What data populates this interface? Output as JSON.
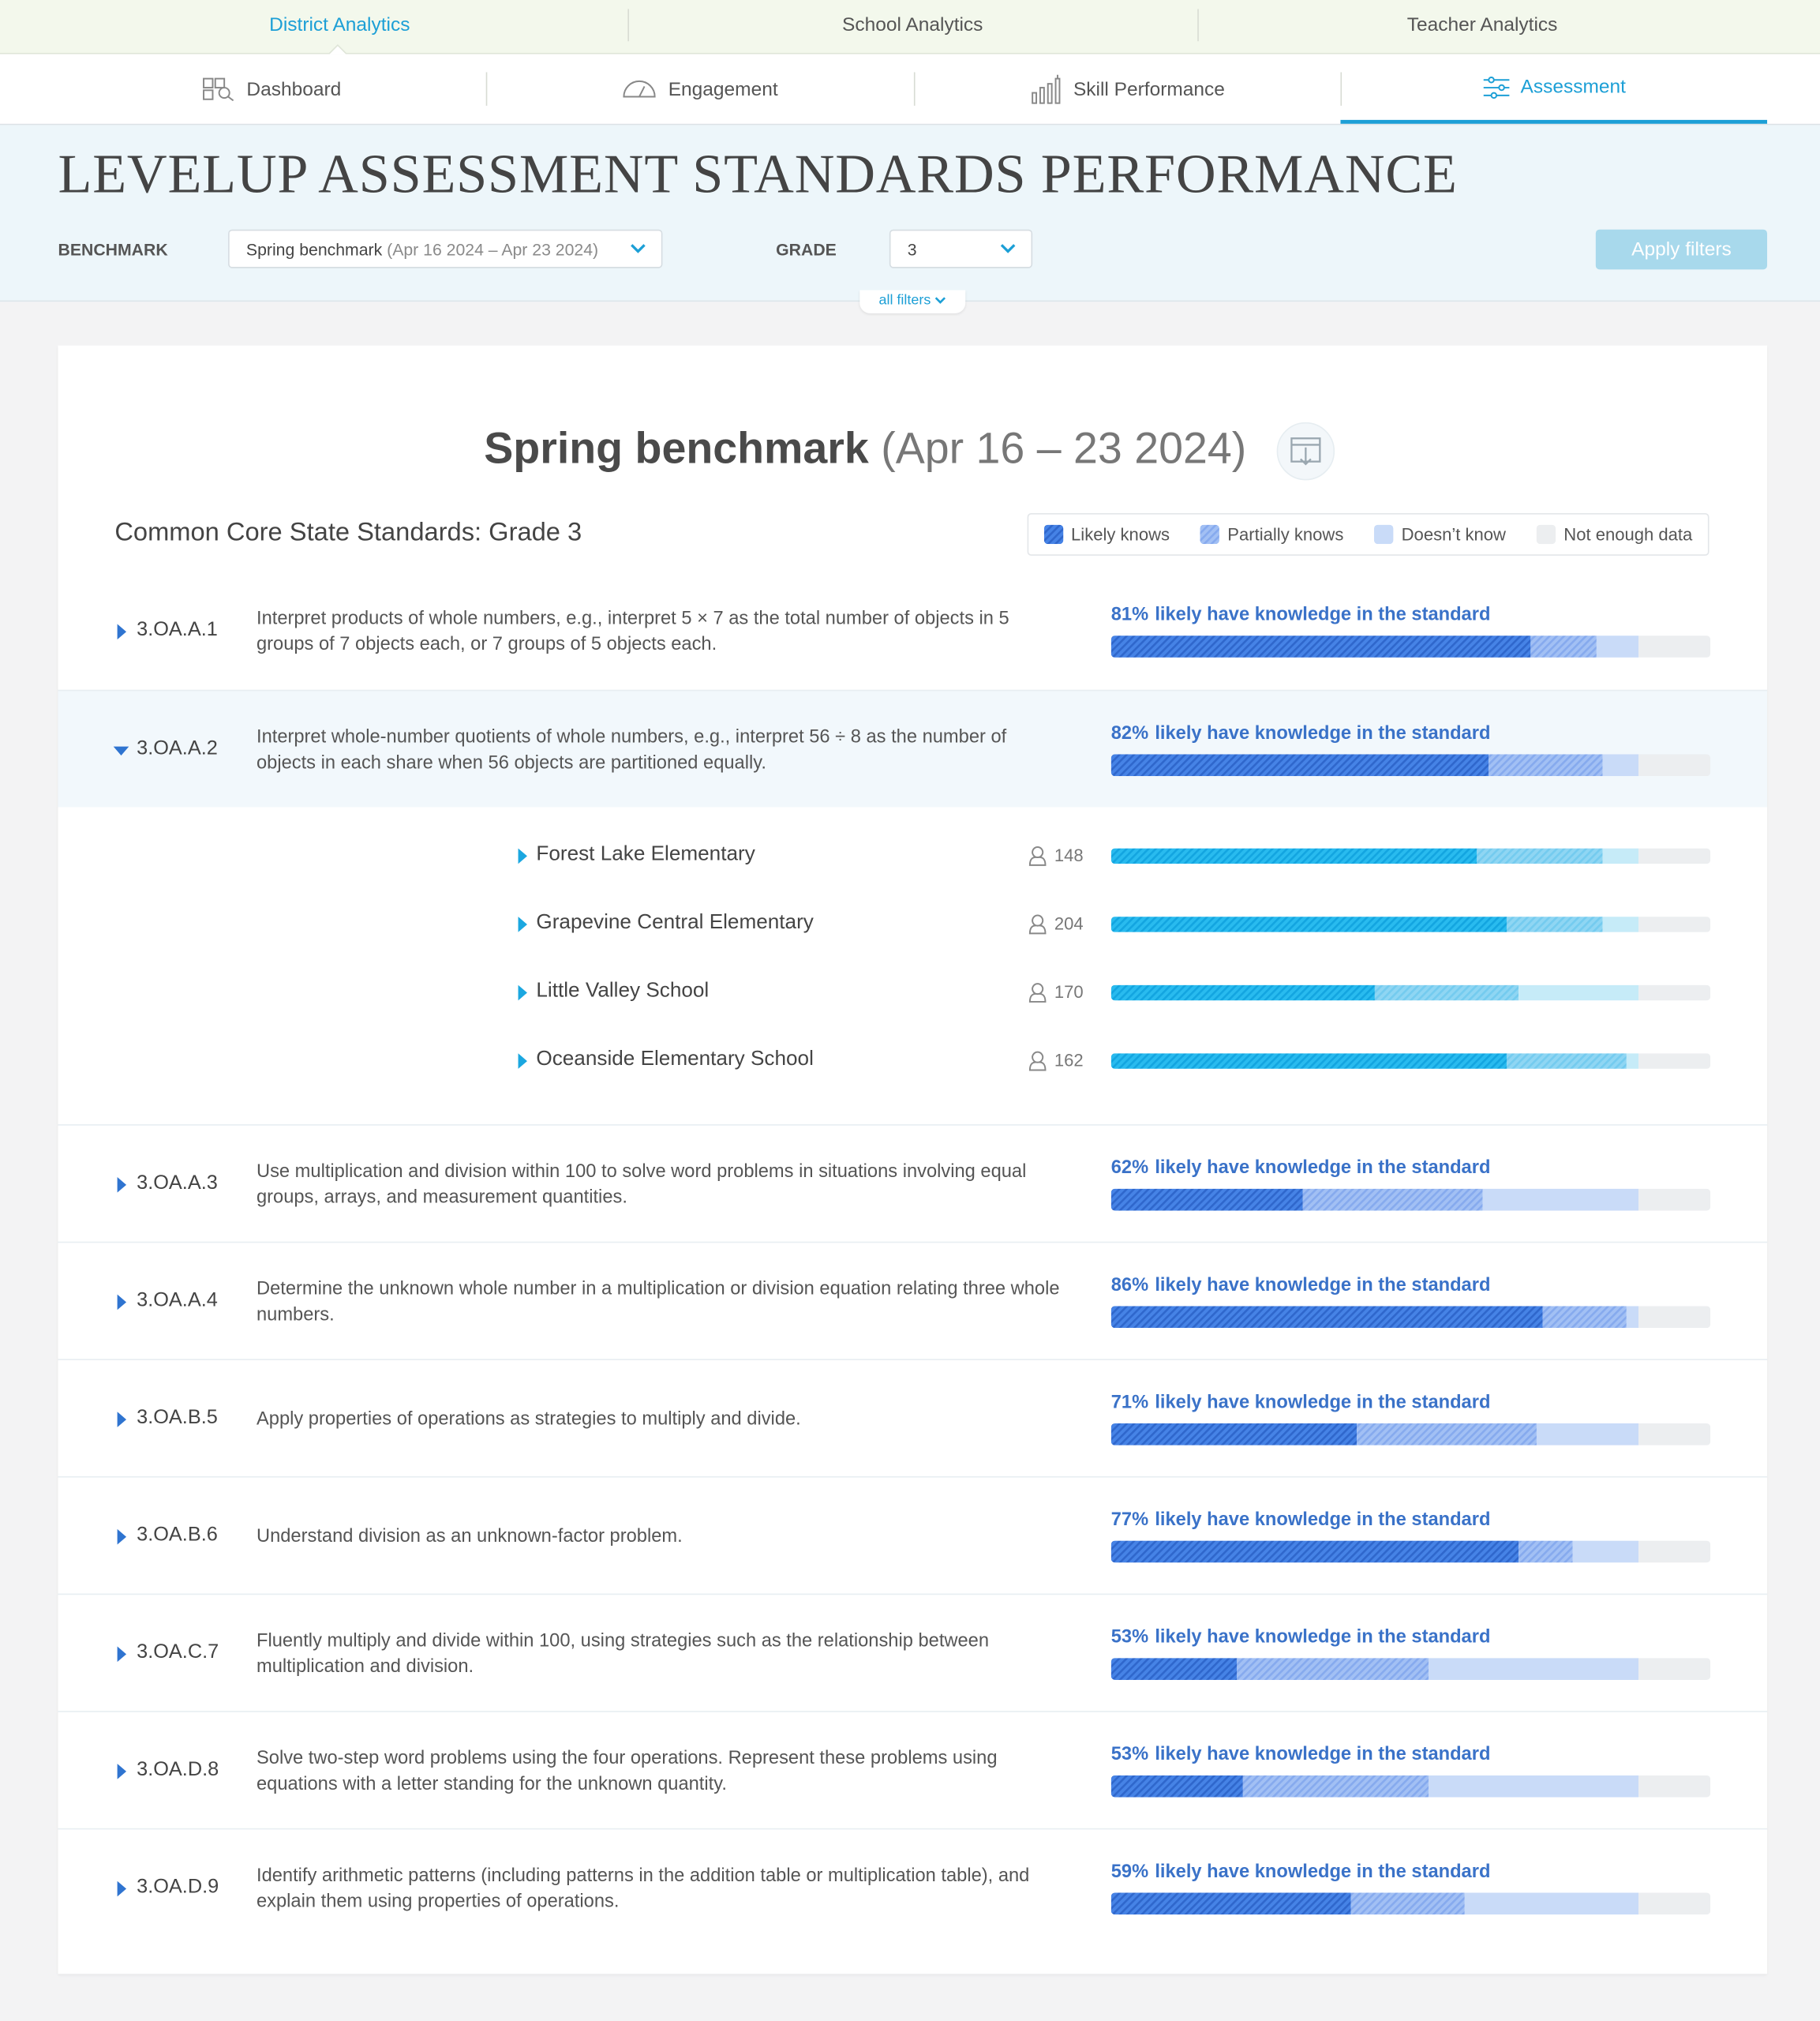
{
  "nav": {
    "primary": [
      "District Analytics",
      "School Analytics",
      "Teacher Analytics"
    ],
    "secondary": [
      "Dashboard",
      "Engagement",
      "Skill Performance",
      "Assessment"
    ]
  },
  "header": {
    "title": "LEVELUP ASSESSMENT STANDARDS PERFORMANCE",
    "benchmark_label": "BENCHMARK",
    "benchmark_value": "Spring benchmark",
    "benchmark_dates": "(Apr 16 2024 – Apr 23 2024)",
    "grade_label": "GRADE",
    "grade_value": "3",
    "apply_button": "Apply filters",
    "all_filters": "all filters"
  },
  "report": {
    "title": "Spring benchmark",
    "dates": "(Apr 16 – 23 2024)",
    "standards_title": "Common Core State Standards: Grade 3",
    "legend": [
      "Likely knows",
      "Partially knows",
      "Doesn’t know",
      "Not enough data"
    ],
    "standards": [
      {
        "code": "3.OA.A.1",
        "description": "Interpret products of whole numbers, e.g., interpret 5 × 7 as the total number of objects in 5 groups of 7 objects each, or 7 groups of 5 objects each.",
        "percent_label": "81%",
        "knowledge_text": "likely have knowledge in the standard",
        "segments": [
          70,
          11,
          7,
          12
        ]
      },
      {
        "code": "3.OA.A.2",
        "description": "Interpret whole-number quotients of whole numbers, e.g., interpret 56 ÷ 8 as the number of objects in each share when 56 objects are partitioned equally.",
        "percent_label": "82%",
        "knowledge_text": "likely have knowledge in the standard",
        "segments": [
          63,
          19,
          6,
          12
        ],
        "schools": [
          {
            "name": "Forest Lake Elementary",
            "students": 148,
            "segments": [
              61,
              21,
              6,
              12
            ]
          },
          {
            "name": "Grapevine Central Elementary",
            "students": 204,
            "segments": [
              66,
              16,
              6,
              12
            ]
          },
          {
            "name": "Little Valley School",
            "students": 170,
            "segments": [
              44,
              24,
              20,
              12
            ]
          },
          {
            "name": "Oceanside Elementary School",
            "students": 162,
            "segments": [
              66,
              20,
              2,
              12
            ]
          }
        ]
      },
      {
        "code": "3.OA.A.3",
        "description": "Use multiplication and division within 100 to solve word problems in situations involving equal groups, arrays, and measurement quantities.",
        "percent_label": "62%",
        "knowledge_text": "likely have knowledge in the standard",
        "segments": [
          32,
          30,
          26,
          12
        ]
      },
      {
        "code": "3.OA.A.4",
        "description": "Determine the unknown whole number in a multiplication or division equation relating three whole numbers.",
        "percent_label": "86%",
        "knowledge_text": "likely have knowledge in the standard",
        "segments": [
          72,
          14,
          2,
          12
        ]
      },
      {
        "code": "3.OA.B.5",
        "description": "Apply properties of operations as strategies to multiply and divide.",
        "percent_label": "71%",
        "knowledge_text": "likely have knowledge in the standard",
        "segments": [
          41,
          30,
          17,
          12
        ]
      },
      {
        "code": "3.OA.B.6",
        "description": "Understand division as an unknown-factor problem.",
        "percent_label": "77%",
        "knowledge_text": "likely have knowledge in the standard",
        "segments": [
          68,
          9,
          11,
          12
        ]
      },
      {
        "code": "3.OA.C.7",
        "description": "Fluently multiply and divide within 100, using strategies such as the relationship between multiplication and division.",
        "percent_label": "53%",
        "knowledge_text": "likely have knowledge in the standard",
        "segments": [
          21,
          32,
          35,
          12
        ]
      },
      {
        "code": "3.OA.D.8",
        "description": "Solve two-step word problems using the four operations. Represent these problems using equations with a letter standing for the unknown quantity.",
        "percent_label": "53%",
        "knowledge_text": "likely have knowledge in the standard",
        "segments": [
          22,
          31,
          35,
          12
        ]
      },
      {
        "code": "3.OA.D.9",
        "description": "Identify arithmetic patterns (including patterns in the addition table or multiplication table), and explain them using properties of operations.",
        "percent_label": "59%",
        "knowledge_text": "likely have knowledge in the standard",
        "segments": [
          40,
          19,
          29,
          12
        ]
      }
    ]
  }
}
